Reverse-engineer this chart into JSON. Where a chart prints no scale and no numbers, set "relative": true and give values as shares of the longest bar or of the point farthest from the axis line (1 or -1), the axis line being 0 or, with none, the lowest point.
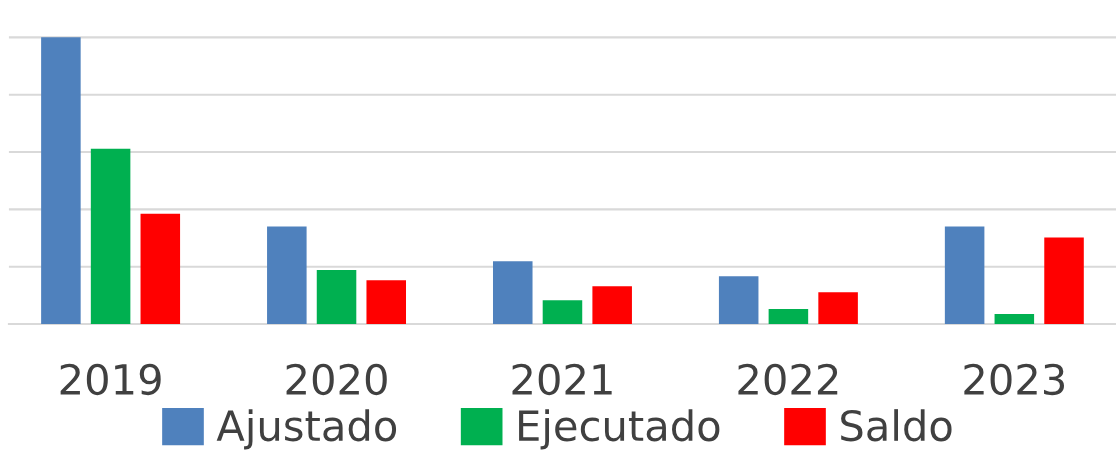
{
  "chart_data": {
    "type": "bar",
    "relative": true,
    "categories": [
      "2019",
      "2020",
      "2021",
      "2022",
      "2023"
    ],
    "series": [
      {
        "name": "Ajustado",
        "color": "#4f81bd",
        "values": [
          1,
          0.34,
          0.219,
          0.167,
          0.34
        ]
      },
      {
        "name": "Ejecutado",
        "color": "#00b050",
        "values": [
          0.611,
          0.188,
          0.083,
          0.052,
          0.035
        ]
      },
      {
        "name": "Saldo",
        "color": "#ff0000",
        "values": [
          0.385,
          0.153,
          0.132,
          0.111,
          0.302
        ]
      }
    ],
    "grid": "y",
    "legend": "bottom"
  }
}
